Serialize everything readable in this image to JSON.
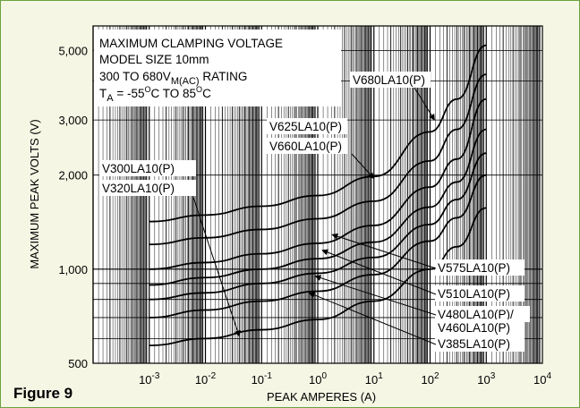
{
  "figure_label": "Figure 9",
  "chart_data": {
    "type": "line",
    "title_lines": [
      "MAXIMUM CLAMPING VOLTAGE",
      "MODEL SIZE 10mm",
      "300 TO 680V",
      "T"
    ],
    "title": {
      "line1": "MAXIMUM CLAMPING VOLTAGE",
      "line2": "MODEL SIZE 10mm",
      "line3_main": "300 TO 680V",
      "line3_sub": "M(AC)",
      "line3_end": " RATING",
      "line4_main": "T",
      "line4_sub": "A",
      "line4_mid": " = -55",
      "line4_sup1": "O",
      "line4_mid2": "C TO 85",
      "line4_sup2": "O",
      "line4_end": "C"
    },
    "xlabel": "PEAK AMPERES (A)",
    "ylabel": "MAXIMUM PEAK VOLTS (V)",
    "x_scale": "log",
    "y_scale": "log",
    "xlim": [
      0.0001,
      10000
    ],
    "ylim": [
      500,
      6000
    ],
    "x_ticks": [
      {
        "base": "10",
        "exp": "-3",
        "value": 0.001
      },
      {
        "base": "10",
        "exp": "-2",
        "value": 0.01
      },
      {
        "base": "10",
        "exp": "-1",
        "value": 0.1
      },
      {
        "base": "10",
        "exp": "0",
        "value": 1
      },
      {
        "base": "10",
        "exp": "1",
        "value": 10
      },
      {
        "base": "10",
        "exp": "2",
        "value": 100
      },
      {
        "base": "10",
        "exp": "3",
        "value": 1000
      },
      {
        "base": "10",
        "exp": "4",
        "value": 10000
      }
    ],
    "y_ticks": [
      {
        "label": "500",
        "value": 500
      },
      {
        "label": "1,000",
        "value": 1000
      },
      {
        "label": "2,000",
        "value": 2000
      },
      {
        "label": "3,000",
        "value": 3000
      },
      {
        "label": "5,000",
        "value": 5000
      }
    ],
    "grid": true,
    "series": [
      {
        "name": "V300LA10(P)",
        "x": [
          0.001,
          0.01,
          0.1,
          1,
          10,
          100,
          300,
          1000
        ],
        "y": [
          570,
          600,
          640,
          690,
          790,
          1000,
          1180,
          1570
        ]
      },
      {
        "name": "V385LA10(P)",
        "x": [
          0.001,
          0.01,
          0.1,
          1,
          10,
          100,
          300,
          1000
        ],
        "y": [
          700,
          740,
          790,
          850,
          960,
          1230,
          1460,
          2000
        ]
      },
      {
        "name": "V460LA10(P)",
        "x": [
          0.001,
          0.01,
          0.1,
          1,
          10,
          100,
          300,
          1000
        ],
        "y": [
          800,
          840,
          900,
          970,
          1090,
          1390,
          1670,
          2350
        ]
      },
      {
        "name": "V510LA10(P)",
        "x": [
          0.001,
          0.01,
          0.1,
          1,
          10,
          100,
          300,
          1000
        ],
        "y": [
          890,
          940,
          1000,
          1080,
          1220,
          1580,
          1900,
          2800
        ]
      },
      {
        "name": "V575LA10(P)",
        "x": [
          0.001,
          0.01,
          0.1,
          1,
          10,
          100,
          300,
          1000
        ],
        "y": [
          1000,
          1050,
          1120,
          1210,
          1380,
          1830,
          2250,
          3500
        ]
      },
      {
        "name": "V625LA10(P)",
        "x": [
          0.001,
          0.01,
          0.1,
          1,
          10,
          100,
          300,
          1000
        ],
        "y": [
          1200,
          1260,
          1340,
          1450,
          1650,
          2220,
          2800,
          4200
        ]
      },
      {
        "name": "V680LA10(P)",
        "x": [
          0.001,
          0.01,
          0.1,
          1,
          10,
          100,
          300,
          1000
        ],
        "y": [
          1420,
          1490,
          1590,
          1720,
          1980,
          2750,
          3500,
          5200
        ]
      }
    ],
    "annotations": [
      {
        "text": "V680LA10(P)",
        "points_to_x": 120,
        "points_to_y": 3000
      },
      {
        "text": "V625LA10(P)",
        "points_to_x": null,
        "points_to_y": null
      },
      {
        "text": "V660LA10(P)",
        "points_to_x": 10,
        "points_to_y": 1950
      },
      {
        "text": "V300LA10(P)",
        "points_to_x": null,
        "points_to_y": null
      },
      {
        "text": "V320LA10(P)",
        "points_to_x": 0.04,
        "points_to_y": 610
      },
      {
        "text": "V575LA10(P)",
        "points_to_x": 1.8,
        "points_to_y": 1290
      },
      {
        "text": "V510LA10(P)",
        "points_to_x": 1.2,
        "points_to_y": 1150
      },
      {
        "text": "V480LA10(P)/",
        "points_to_x": 0.9,
        "points_to_y": 950
      },
      {
        "text": "V460LA10(P)",
        "points_to_x": null,
        "points_to_y": null
      },
      {
        "text": "V385LA10(P)",
        "points_to_x": 0.7,
        "points_to_y": 840
      }
    ]
  }
}
